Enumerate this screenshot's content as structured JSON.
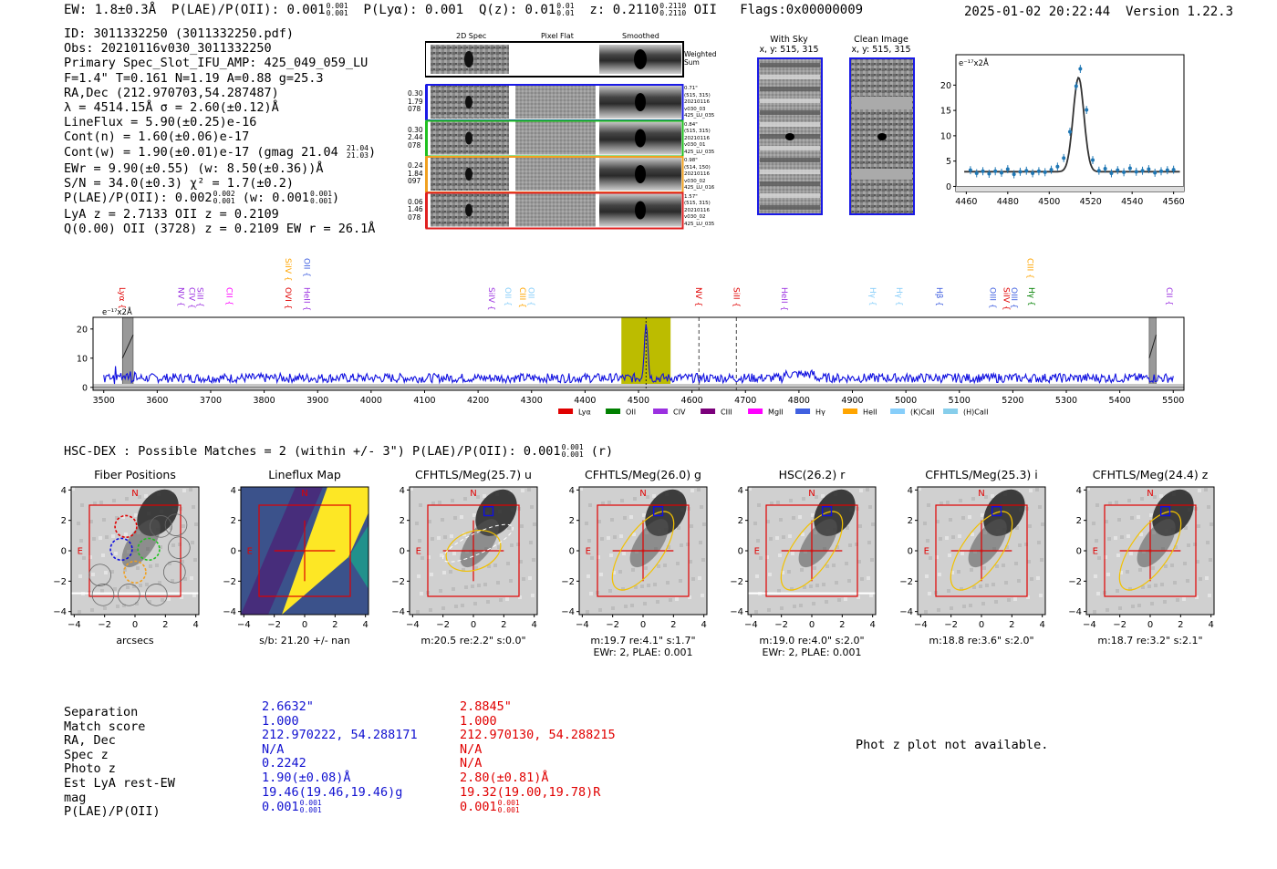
{
  "header": {
    "ew": "EW: 1.8±0.3Å",
    "plae": "P(LAE)/P(OII): 0.001",
    "plae_hi": "0.001",
    "plae_lo": "0.001",
    "plya": "P(Lyα): 0.001",
    "qz": "Q(z): 0.01",
    "qz_hi": "0.01",
    "qz_lo": "0.01",
    "z": "z: 0.2110",
    "z_hi": "0.2110",
    "z_lo": "0.2110",
    "z_line": "OII",
    "flags": "Flags:0x00000009",
    "timestamp": "2025-01-02 20:22:44",
    "version": "Version 1.22.3"
  },
  "info": {
    "id": "ID: 3011332250 (3011332250.pdf)",
    "obs": "Obs: 20210116v030_3011332250",
    "primary": "Primary Spec_Slot_IFU_AMP: 425_049_059_LU",
    "fwhm": "F=1.4\"  T=0.161  N=1.19  A=0.88  g=25.3",
    "radec": "RA,Dec (212.970703,54.287487)",
    "lambda": "λ = 4514.15Å  σ = 2.60(±0.12)Å",
    "lineflux": "LineFlux = 5.90(±0.25)e-16",
    "contn": "Cont(n) = 1.60(±0.06)e-17",
    "contw": "Cont(w) = 1.90(±0.01)e-17 (gmag 21.04",
    "contw_hi": "21.04",
    "contw_lo": "21.03",
    "contw_close": ")",
    "ewr": "EWr = 9.90(±0.55) (w: 8.50(±0.36))Å",
    "sn": "S/N = 34.0(±0.3)  χ² = 1.7(±0.2)",
    "plae2": "P(LAE)/P(OII): 0.002",
    "plae2_hi": "0.002",
    "plae2_lo": "0.001",
    "plae2_w": "(w: 0.001",
    "plae2_w_hi": "0.001",
    "plae2_w_lo": "0.001",
    "plae2_close": ")",
    "lya": "LyA z = 2.7133  OII z = 0.2109",
    "q": "Q(0.00) OII (3728) z = 0.2109  EW r = 26.1Å"
  },
  "stamps": {
    "col_2d": "2D Spec",
    "col_flat": "Pixel Flat",
    "col_smooth": "Smoothed",
    "weighted": "Weighted Sum",
    "rows": [
      {
        "left": [
          "0.30",
          "1.79",
          "078"
        ],
        "right": [
          "0.71\"",
          "(515, 315)",
          "20210116",
          "v030_03",
          "425_LU_035"
        ],
        "color": "#1a1ae6"
      },
      {
        "left": [
          "0.30",
          "2.44",
          "078"
        ],
        "right": [
          "0.84\"",
          "(515, 315)",
          "20210116",
          "v030_01",
          "425_LU_035"
        ],
        "color": "#20c020"
      },
      {
        "left": [
          "0.24",
          "1.84",
          "097"
        ],
        "right": [
          "0.98\"",
          "(514, 150)",
          "20210116",
          "v030_02",
          "425_LU_016"
        ],
        "color": "#f0a020"
      },
      {
        "left": [
          "0.06",
          "1.46",
          "078"
        ],
        "right": [
          "1.57\"",
          "(515, 315)",
          "20210116",
          "v030_02",
          "425_LU_035"
        ],
        "color": "#e02020"
      }
    ],
    "with_sky": "With Sky",
    "with_sky_xy": "x, y: 515, 315",
    "clean": "Clean Image",
    "clean_xy": "x, y: 515, 315"
  },
  "chart_data": [
    {
      "type": "scatter",
      "title": "Line fit",
      "ylabel": "e⁻¹⁷x2Å",
      "xlim": [
        4455,
        4565
      ],
      "ylim": [
        -1,
        26
      ],
      "xticks": [
        4460,
        4480,
        4500,
        4520,
        4540,
        4560
      ],
      "yticks": [
        0,
        5,
        10,
        15,
        20
      ],
      "x": [
        4462,
        4465,
        4468,
        4471,
        4474,
        4477,
        4480,
        4483,
        4486,
        4489,
        4492,
        4495,
        4498,
        4501,
        4504,
        4507,
        4510,
        4513,
        4515,
        4518,
        4521,
        4524,
        4527,
        4530,
        4533,
        4536,
        4539,
        4542,
        4545,
        4548,
        4551,
        4554,
        4557,
        4560
      ],
      "y": [
        3.2,
        2.6,
        3.0,
        2.5,
        3.0,
        2.7,
        3.4,
        2.4,
        2.9,
        3.1,
        2.6,
        3.0,
        2.8,
        3.3,
        3.9,
        5.6,
        10.8,
        19.8,
        23.2,
        15.1,
        5.2,
        3.1,
        3.5,
        2.6,
        3.2,
        2.8,
        3.6,
        2.9,
        3.1,
        3.4,
        2.7,
        3.0,
        3.2,
        3.3
      ],
      "fit": {
        "center": 4514.15,
        "sigma": 2.6,
        "amplitude": 18.6,
        "continuum": 2.9
      }
    },
    {
      "type": "line",
      "title": "Full spectrum",
      "ylabel": "e⁻¹⁷x2Å",
      "xlim": [
        3480,
        5520
      ],
      "ylim": [
        -1,
        24
      ],
      "xticks": [
        3500,
        3600,
        3700,
        3800,
        3900,
        4000,
        4100,
        4200,
        4300,
        4400,
        4500,
        4600,
        4700,
        4800,
        4900,
        5000,
        5100,
        5200,
        5300,
        5400,
        5500
      ],
      "yticks": [
        0,
        10,
        20
      ],
      "highlight_band": [
        4468,
        4560
      ],
      "peak_wavelength": 4514.15,
      "peak_value": 22.8,
      "continuum": 3.2,
      "masked_bands": [
        [
          3535,
          3555
        ],
        [
          5455,
          5468
        ]
      ],
      "dashed_lines": [
        4613,
        4683
      ],
      "legend": [
        "Lyα",
        "OII",
        "CIV",
        "CIII",
        "MgII",
        "Hγ",
        "HeII",
        "(K)CaII",
        "(H)CaII"
      ],
      "legend_colors": [
        "#e00000",
        "#008000",
        "#9b30e0",
        "#7b007b",
        "#ff00ff",
        "#4060e0",
        "#ffa500",
        "#87cefa",
        "#87ceeb"
      ],
      "line_labels": [
        {
          "name": "Lyα",
          "wave": 3535,
          "color": "#e00000",
          "tier": 2
        },
        {
          "name": "NV",
          "wave": 3645,
          "color": "#9b30e0",
          "tier": 2
        },
        {
          "name": "CIV",
          "wave": 3665,
          "color": "#9b30e0",
          "tier": 2
        },
        {
          "name": "SiII",
          "wave": 3680,
          "color": "#9b30e0",
          "tier": 2
        },
        {
          "name": "CII",
          "wave": 3735,
          "color": "#ff00ff",
          "tier": 2
        },
        {
          "name": "SiIV",
          "wave": 3845,
          "color": "#ffa500",
          "tier": 1
        },
        {
          "name": "OVI",
          "wave": 3845,
          "color": "#e00000",
          "tier": 2
        },
        {
          "name": "OII",
          "wave": 3880,
          "color": "#4060e0",
          "tier": 1
        },
        {
          "name": "HeII",
          "wave": 3880,
          "color": "#9b30e0",
          "tier": 2
        },
        {
          "name": "SiIV",
          "wave": 4225,
          "color": "#9b30e0",
          "tier": 2
        },
        {
          "name": "OII",
          "wave": 4256,
          "color": "#87cefa",
          "tier": 2
        },
        {
          "name": "CIII",
          "wave": 4283,
          "color": "#ffa500",
          "tier": 2
        },
        {
          "name": "OII",
          "wave": 4300,
          "color": "#87cefa",
          "tier": 2
        },
        {
          "name": "NV",
          "wave": 4613,
          "color": "#e00000",
          "tier": 2
        },
        {
          "name": "SiII",
          "wave": 4683,
          "color": "#e00000",
          "tier": 2
        },
        {
          "name": "HeII",
          "wave": 4773,
          "color": "#9b30e0",
          "tier": 2
        },
        {
          "name": "Hγ",
          "wave": 4938,
          "color": "#87cefa",
          "tier": 2
        },
        {
          "name": "Hγ",
          "wave": 4988,
          "color": "#87cefa",
          "tier": 2
        },
        {
          "name": "Hβ",
          "wave": 5063,
          "color": "#4060e0",
          "tier": 2
        },
        {
          "name": "OIII",
          "wave": 5163,
          "color": "#4060e0",
          "tier": 2
        },
        {
          "name": "SiIV",
          "wave": 5188,
          "color": "#e00000",
          "tier": 2
        },
        {
          "name": "OIII",
          "wave": 5203,
          "color": "#4060e0",
          "tier": 2
        },
        {
          "name": "CIII",
          "wave": 5233,
          "color": "#ffa500",
          "tier": 1
        },
        {
          "name": "Hγ",
          "wave": 5235,
          "color": "#008000",
          "tier": 2
        },
        {
          "name": "CII",
          "wave": 5493,
          "color": "#9b30e0",
          "tier": 2
        }
      ]
    }
  ],
  "hsc": {
    "title": "HSC-DEX : Possible Matches = 2 (within +/- 3\")  P(LAE)/P(OII): 0.001",
    "hi": "0.001",
    "lo": "0.001",
    "band": "(r)"
  },
  "cutouts": [
    {
      "title": "Fiber Positions",
      "caption": [
        "arcsecs"
      ],
      "kind": "fiber"
    },
    {
      "title": "Lineflux Map",
      "caption": [
        "s/b: 21.20 +/- nan"
      ],
      "kind": "lineflux"
    },
    {
      "title": "CFHTLS/Meg(25.7) u",
      "caption": [
        "m:20.5  re:2.2\"  s:0.0\""
      ],
      "kind": "u"
    },
    {
      "title": "CFHTLS/Meg(26.0) g",
      "caption": [
        "m:19.7  re:4.1\"  s:1.7\"",
        "EWr: 2, PLAE: 0.001"
      ],
      "kind": "g"
    },
    {
      "title": "HSC(26.2) r",
      "caption": [
        "m:19.0  re:4.0\"  s:2.0\"",
        "EWr: 2, PLAE: 0.001"
      ],
      "kind": "r"
    },
    {
      "title": "CFHTLS/Meg(25.3) i",
      "caption": [
        "m:18.8  re:3.6\"  s:2.0\""
      ],
      "kind": "i"
    },
    {
      "title": "CFHTLS/Meg(24.4) z",
      "caption": [
        "m:18.7  re:3.2\"  s:2.1\""
      ],
      "kind": "z"
    }
  ],
  "cutout_axis": {
    "ticks": [
      "−4",
      "−2",
      "0",
      "2",
      "4"
    ],
    "north": "N",
    "east": "E"
  },
  "table": {
    "labels": [
      "Separation",
      "Match score",
      "RA, Dec",
      "Spec z",
      "Photo z",
      "Est LyA rest-EW",
      "mag",
      "P(LAE)/P(OII)"
    ],
    "match1": [
      "2.6632\"",
      "1.000",
      "212.970222, 54.288171",
      "N/A",
      "0.2242",
      "1.90(±0.08)Å",
      "19.46(19.46,19.46)g",
      "0.001"
    ],
    "match1_hi": "0.001",
    "match1_lo": "0.001",
    "match2": [
      "2.8845\"",
      "1.000",
      "212.970130, 54.288215",
      "N/A",
      "N/A",
      "2.80(±0.81)Å",
      "19.32(19.00,19.78)R",
      "0.001"
    ],
    "match2_hi": "0.001",
    "match2_lo": "0.001",
    "photz": "Phot z plot not available."
  }
}
